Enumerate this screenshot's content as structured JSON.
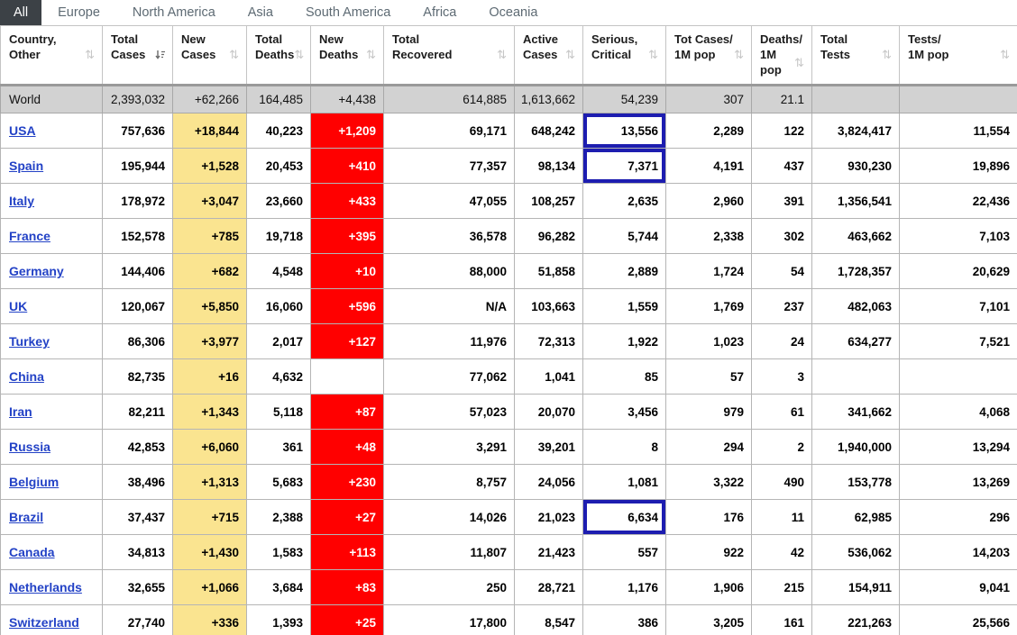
{
  "tabs": [
    {
      "label": "All",
      "active": true
    },
    {
      "label": "Europe",
      "active": false
    },
    {
      "label": "North America",
      "active": false
    },
    {
      "label": "Asia",
      "active": false
    },
    {
      "label": "South America",
      "active": false
    },
    {
      "label": "Africa",
      "active": false
    },
    {
      "label": "Oceania",
      "active": false
    }
  ],
  "icons": {
    "sort-both-icon": "⇅",
    "sort-desc-icon": "↓ with bars (sorted descending)"
  },
  "colors": {
    "active_tab_bg": "#3c4146",
    "new_cases_highlight": "#fae490",
    "new_deaths_highlight": "#ff0000",
    "serious_box_border": "#1d1db0",
    "world_row_bg": "#d2d2d2",
    "country_link": "#2342c6"
  },
  "columns": [
    {
      "key": "country",
      "lines": [
        "Country,",
        "Other"
      ],
      "sort": "both"
    },
    {
      "key": "total-cases",
      "lines": [
        "Total",
        "Cases"
      ],
      "sort": "desc"
    },
    {
      "key": "new-cases",
      "lines": [
        "New",
        "Cases"
      ],
      "sort": "both"
    },
    {
      "key": "total-deaths",
      "lines": [
        "Total",
        "Deaths"
      ],
      "sort": "both"
    },
    {
      "key": "new-deaths",
      "lines": [
        "New",
        "Deaths"
      ],
      "sort": "both"
    },
    {
      "key": "total-recovered",
      "lines": [
        "Total",
        "Recovered"
      ],
      "sort": "both"
    },
    {
      "key": "active-cases",
      "lines": [
        "Active",
        "Cases"
      ],
      "sort": "both"
    },
    {
      "key": "serious-critical",
      "lines": [
        "Serious,",
        "Critical"
      ],
      "sort": "both"
    },
    {
      "key": "cases-1m",
      "lines": [
        "Tot Cases/",
        "1M pop"
      ],
      "sort": "both"
    },
    {
      "key": "deaths-1m",
      "lines": [
        "Deaths/",
        "1M pop"
      ],
      "sort": "both"
    },
    {
      "key": "total-tests",
      "lines": [
        "Total",
        "Tests"
      ],
      "sort": "both"
    },
    {
      "key": "tests-1m",
      "lines": [
        "Tests/",
        "1M pop"
      ],
      "sort": "both"
    }
  ],
  "rows": [
    {
      "country": "World",
      "world": true,
      "cells": [
        "2,393,032",
        "+62,266",
        "164,485",
        "+4,438",
        "614,885",
        "1,613,662",
        "54,239",
        "307",
        "21.1",
        "",
        ""
      ]
    },
    {
      "country": "USA",
      "boxed": true,
      "cells": [
        "757,636",
        "+18,844",
        "40,223",
        "+1,209",
        "69,171",
        "648,242",
        "13,556",
        "2,289",
        "122",
        "3,824,417",
        "11,554"
      ]
    },
    {
      "country": "Spain",
      "boxed": true,
      "cells": [
        "195,944",
        "+1,528",
        "20,453",
        "+410",
        "77,357",
        "98,134",
        "7,371",
        "4,191",
        "437",
        "930,230",
        "19,896"
      ]
    },
    {
      "country": "Italy",
      "cells": [
        "178,972",
        "+3,047",
        "23,660",
        "+433",
        "47,055",
        "108,257",
        "2,635",
        "2,960",
        "391",
        "1,356,541",
        "22,436"
      ]
    },
    {
      "country": "France",
      "cells": [
        "152,578",
        "+785",
        "19,718",
        "+395",
        "36,578",
        "96,282",
        "5,744",
        "2,338",
        "302",
        "463,662",
        "7,103"
      ]
    },
    {
      "country": "Germany",
      "cells": [
        "144,406",
        "+682",
        "4,548",
        "+10",
        "88,000",
        "51,858",
        "2,889",
        "1,724",
        "54",
        "1,728,357",
        "20,629"
      ]
    },
    {
      "country": "UK",
      "cells": [
        "120,067",
        "+5,850",
        "16,060",
        "+596",
        "N/A",
        "103,663",
        "1,559",
        "1,769",
        "237",
        "482,063",
        "7,101"
      ]
    },
    {
      "country": "Turkey",
      "cells": [
        "86,306",
        "+3,977",
        "2,017",
        "+127",
        "11,976",
        "72,313",
        "1,922",
        "1,023",
        "24",
        "634,277",
        "7,521"
      ]
    },
    {
      "country": "China",
      "cells": [
        "82,735",
        "+16",
        "4,632",
        "",
        "77,062",
        "1,041",
        "85",
        "57",
        "3",
        "",
        ""
      ]
    },
    {
      "country": "Iran",
      "cells": [
        "82,211",
        "+1,343",
        "5,118",
        "+87",
        "57,023",
        "20,070",
        "3,456",
        "979",
        "61",
        "341,662",
        "4,068"
      ]
    },
    {
      "country": "Russia",
      "cells": [
        "42,853",
        "+6,060",
        "361",
        "+48",
        "3,291",
        "39,201",
        "8",
        "294",
        "2",
        "1,940,000",
        "13,294"
      ]
    },
    {
      "country": "Belgium",
      "cells": [
        "38,496",
        "+1,313",
        "5,683",
        "+230",
        "8,757",
        "24,056",
        "1,081",
        "3,322",
        "490",
        "153,778",
        "13,269"
      ]
    },
    {
      "country": "Brazil",
      "boxed": true,
      "cells": [
        "37,437",
        "+715",
        "2,388",
        "+27",
        "14,026",
        "21,023",
        "6,634",
        "176",
        "11",
        "62,985",
        "296"
      ]
    },
    {
      "country": "Canada",
      "cells": [
        "34,813",
        "+1,430",
        "1,583",
        "+113",
        "11,807",
        "21,423",
        "557",
        "922",
        "42",
        "536,062",
        "14,203"
      ]
    },
    {
      "country": "Netherlands",
      "cells": [
        "32,655",
        "+1,066",
        "3,684",
        "+83",
        "250",
        "28,721",
        "1,176",
        "1,906",
        "215",
        "154,911",
        "9,041"
      ]
    },
    {
      "country": "Switzerland",
      "cells": [
        "27,740",
        "+336",
        "1,393",
        "+25",
        "17,800",
        "8,547",
        "386",
        "3,205",
        "161",
        "221,263",
        "25,566"
      ]
    }
  ]
}
